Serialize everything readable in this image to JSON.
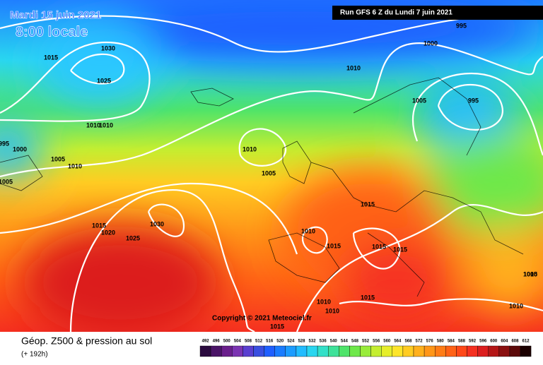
{
  "header": {
    "date": "Mardi 15 juin 2021",
    "time": "8:00 locale",
    "run": "Run GFS 6 Z du Lundi 7 juin 2021"
  },
  "isobar_labels": [
    "995",
    "1000",
    "1010",
    "1030",
    "1015",
    "1025",
    "1005",
    "995",
    "1010",
    "1010",
    "995",
    "1000",
    "1005",
    "1010",
    "1010",
    "1005",
    "1005",
    "1015",
    "1010",
    "1030",
    "1015",
    "1020",
    "1025",
    "1015",
    "1015",
    "1015",
    "1015",
    "1010",
    "1010",
    "1015",
    "1010",
    "1005",
    "1010"
  ],
  "copyright": "Copyright © 2021 Meteociel.fr",
  "footer": {
    "title": "Géop. Z500 & pression au sol",
    "lead": "(+ 192h)"
  },
  "scale": {
    "values": [
      492,
      496,
      500,
      504,
      508,
      512,
      516,
      520,
      524,
      528,
      532,
      536,
      540,
      544,
      548,
      552,
      556,
      560,
      564,
      568,
      572,
      576,
      580,
      584,
      588,
      592,
      596,
      600,
      604,
      608,
      612
    ],
    "colors": [
      "#2b0b3f",
      "#4a1466",
      "#6a1f8c",
      "#7b34b2",
      "#5a3fd0",
      "#3a4fe0",
      "#1f5fff",
      "#1a7cff",
      "#1c9cff",
      "#22bcff",
      "#2ad6f0",
      "#33e0c8",
      "#3ee29a",
      "#4ee46a",
      "#6ee84a",
      "#98ec3a",
      "#c4ee30",
      "#e6ee2a",
      "#fde52a",
      "#ffcc22",
      "#ffb01c",
      "#ff9618",
      "#ff7c16",
      "#ff6216",
      "#ff4818",
      "#f53020",
      "#dc1e1e",
      "#b41616",
      "#8a1010",
      "#5c0a0a",
      "#1a0000"
    ]
  }
}
